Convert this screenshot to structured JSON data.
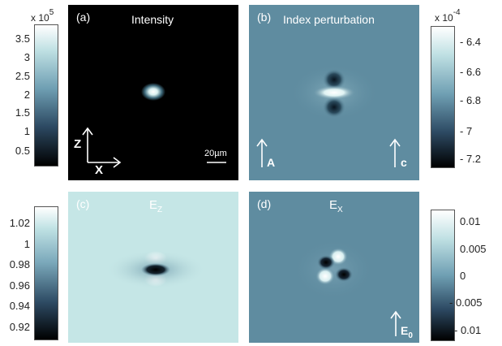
{
  "panels": {
    "a": {
      "label": "(a)",
      "title": "Intensity",
      "scale_bar": "20µm",
      "axis_z": "Z",
      "axis_x": "X"
    },
    "b": {
      "label": "(b)",
      "title": "Index perturbation",
      "arrow_a": "A",
      "arrow_c": "c"
    },
    "c": {
      "label": "(c)",
      "title_main": "E",
      "title_sub": "Z"
    },
    "d": {
      "label": "(d)",
      "title_main": "E",
      "title_sub": "X",
      "arrow_main": "E",
      "arrow_sub": "0"
    }
  },
  "colorbars": {
    "a": {
      "multiplier": "x 10",
      "exponent": "5",
      "ticks": [
        "3.5",
        "3",
        "2.5",
        "2",
        "1.5",
        "1",
        "0.5"
      ]
    },
    "b": {
      "multiplier": "x 10",
      "exponent": "-4",
      "ticks": [
        "- 6.4",
        "- 6.6",
        "- 6.8",
        "- 7",
        "- 7.2"
      ]
    },
    "c": {
      "ticks": [
        "1.02",
        "1",
        "0.98",
        "0.96",
        "0.94",
        "0.92"
      ]
    },
    "d": {
      "ticks": [
        "0.01",
        "0.005",
        "0",
        "- 0.005",
        "- 0.01"
      ]
    }
  },
  "colors": {
    "dark": "#050505",
    "ice": "#c5e6e6",
    "steel": "#5f8ca0",
    "navy": "#0d1b28"
  }
}
